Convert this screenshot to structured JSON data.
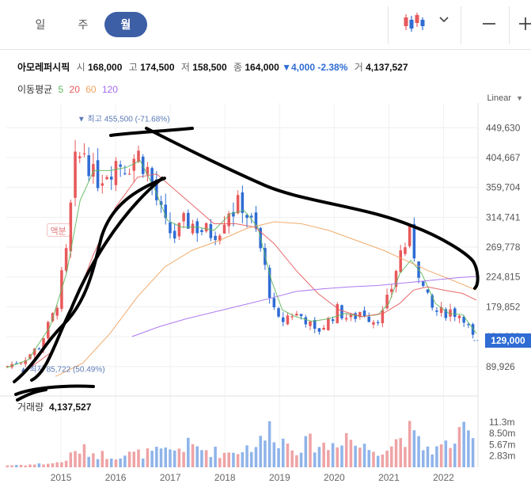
{
  "tabs": [
    {
      "label": "일"
    },
    {
      "label": "주"
    },
    {
      "label": "월"
    }
  ],
  "stock": {
    "name": "아모레퍼시픽",
    "open_label": "시",
    "open": "168,000",
    "high_label": "고",
    "high": "174,500",
    "low_label": "저",
    "low": "158,500",
    "close_label": "종",
    "close": "164,000",
    "change": "4,000",
    "change_pct": "-2.38%",
    "volume_label": "거",
    "volume": "4,137,527"
  },
  "ma": {
    "label": "이동평균",
    "periods": [
      "5",
      "20",
      "60",
      "120"
    ],
    "colors": [
      "#5cb85c",
      "#e8595b",
      "#f0a35e",
      "#a46cf0"
    ]
  },
  "scale_label": "Linear",
  "colors": {
    "up": "#e8595b",
    "down": "#2f6cd4",
    "accent": "#3d5fa6",
    "annot": "#5a7ab8"
  },
  "chart_data": {
    "type": "candlestick",
    "title": "아모레퍼시픽 월봉",
    "y_ticks": [
      449630,
      404667,
      359704,
      314741,
      269778,
      224815,
      179852,
      134889,
      89926
    ],
    "y_tick_labels": [
      "449,630",
      "404,667",
      "359,704",
      "314,741",
      "269,778",
      "224,815",
      "179,852",
      "134,889",
      "89,926"
    ],
    "ylim": [
      67000,
      475000
    ],
    "x_range": [
      2014.0,
      2022.63
    ],
    "x_ticks": [
      2015,
      2016,
      2017,
      2018,
      2019,
      2020,
      2021,
      2022
    ],
    "x_tick_labels": [
      "2015",
      "2016",
      "2017",
      "2018",
      "2019",
      "2020",
      "2021",
      "2022"
    ],
    "current_price": 129000,
    "current_price_label": "129,000",
    "max_label": "최고 455,500 (-71.68%)",
    "max_value": 455500,
    "max_x": 2015.33,
    "min_label": "최저 85,722 (50.49%)",
    "min_value": 85722,
    "min_x": 2014.04,
    "annotation_text": "액분",
    "volume_label": "거래량",
    "volume_value": "4,137,527",
    "volume_ticks": [
      11.3,
      8.5,
      5.67,
      2.83
    ],
    "volume_tick_labels": [
      "11.3m",
      "8.50m",
      "5.67m",
      "2.83m"
    ],
    "volume_max": 13.5,
    "close_anchors": [
      [
        2014.0,
        90000
      ],
      [
        2014.3,
        100000
      ],
      [
        2014.6,
        120000
      ],
      [
        2014.9,
        175000
      ],
      [
        2015.1,
        260000
      ],
      [
        2015.25,
        390000
      ],
      [
        2015.45,
        420000
      ],
      [
        2015.6,
        370000
      ],
      [
        2015.8,
        385000
      ],
      [
        2016.0,
        400000
      ],
      [
        2016.2,
        395000
      ],
      [
        2016.4,
        410000
      ],
      [
        2016.55,
        395000
      ],
      [
        2016.75,
        340000
      ],
      [
        2016.9,
        300000
      ],
      [
        2017.1,
        285000
      ],
      [
        2017.3,
        310000
      ],
      [
        2017.5,
        300000
      ],
      [
        2017.7,
        290000
      ],
      [
        2017.9,
        300000
      ],
      [
        2018.05,
        330000
      ],
      [
        2018.2,
        325000
      ],
      [
        2018.3,
        340000
      ],
      [
        2018.45,
        310000
      ],
      [
        2018.6,
        285000
      ],
      [
        2018.75,
        230000
      ],
      [
        2018.9,
        170000
      ],
      [
        2019.0,
        155000
      ],
      [
        2019.2,
        170000
      ],
      [
        2019.45,
        165000
      ],
      [
        2019.65,
        140000
      ],
      [
        2019.85,
        155000
      ],
      [
        2020.05,
        175000
      ],
      [
        2020.3,
        160000
      ],
      [
        2020.5,
        175000
      ],
      [
        2020.7,
        160000
      ],
      [
        2020.9,
        170000
      ],
      [
        2021.05,
        210000
      ],
      [
        2021.2,
        260000
      ],
      [
        2021.38,
        285000
      ],
      [
        2021.5,
        250000
      ],
      [
        2021.65,
        200000
      ],
      [
        2021.8,
        175000
      ],
      [
        2021.95,
        170000
      ],
      [
        2022.1,
        175000
      ],
      [
        2022.25,
        170000
      ],
      [
        2022.4,
        165000
      ],
      [
        2022.5,
        135000
      ],
      [
        2022.6,
        129000
      ]
    ],
    "ma_lines": [
      {
        "name": "MA5",
        "points": [
          [
            2014.0,
            88000
          ],
          [
            2014.4,
            100000
          ],
          [
            2014.8,
            150000
          ],
          [
            2015.1,
            230000
          ],
          [
            2015.35,
            340000
          ],
          [
            2015.6,
            385000
          ],
          [
            2015.9,
            385000
          ],
          [
            2016.2,
            390000
          ],
          [
            2016.45,
            400000
          ],
          [
            2016.7,
            360000
          ],
          [
            2016.95,
            310000
          ],
          [
            2017.2,
            300000
          ],
          [
            2017.5,
            300000
          ],
          [
            2017.8,
            295000
          ],
          [
            2018.1,
            320000
          ],
          [
            2018.35,
            325000
          ],
          [
            2018.6,
            300000
          ],
          [
            2018.85,
            220000
          ],
          [
            2019.05,
            175000
          ],
          [
            2019.3,
            165000
          ],
          [
            2019.6,
            158000
          ],
          [
            2019.9,
            162000
          ],
          [
            2020.2,
            170000
          ],
          [
            2020.5,
            165000
          ],
          [
            2020.8,
            168000
          ],
          [
            2021.0,
            185000
          ],
          [
            2021.2,
            230000
          ],
          [
            2021.4,
            250000
          ],
          [
            2021.6,
            230000
          ],
          [
            2021.85,
            185000
          ],
          [
            2022.1,
            170000
          ],
          [
            2022.35,
            168000
          ],
          [
            2022.6,
            140000
          ]
        ]
      },
      {
        "name": "MA20",
        "points": [
          [
            2014.3,
            80000
          ],
          [
            2014.8,
            110000
          ],
          [
            2015.2,
            175000
          ],
          [
            2015.6,
            260000
          ],
          [
            2016.0,
            330000
          ],
          [
            2016.4,
            375000
          ],
          [
            2016.75,
            380000
          ],
          [
            2017.1,
            355000
          ],
          [
            2017.45,
            330000
          ],
          [
            2017.8,
            305000
          ],
          [
            2018.2,
            305000
          ],
          [
            2018.55,
            300000
          ],
          [
            2018.9,
            275000
          ],
          [
            2019.3,
            235000
          ],
          [
            2019.7,
            200000
          ],
          [
            2020.1,
            175000
          ],
          [
            2020.5,
            165000
          ],
          [
            2020.9,
            170000
          ],
          [
            2021.2,
            185000
          ],
          [
            2021.45,
            205000
          ],
          [
            2021.7,
            210000
          ],
          [
            2022.0,
            205000
          ],
          [
            2022.35,
            200000
          ],
          [
            2022.6,
            190000
          ]
        ]
      },
      {
        "name": "MA60",
        "points": [
          [
            2014.9,
            75000
          ],
          [
            2015.4,
            95000
          ],
          [
            2015.9,
            140000
          ],
          [
            2016.4,
            195000
          ],
          [
            2016.9,
            240000
          ],
          [
            2017.4,
            265000
          ],
          [
            2017.9,
            280000
          ],
          [
            2018.4,
            298000
          ],
          [
            2018.9,
            308000
          ],
          [
            2019.4,
            305000
          ],
          [
            2019.9,
            295000
          ],
          [
            2020.4,
            280000
          ],
          [
            2020.9,
            265000
          ],
          [
            2021.3,
            250000
          ],
          [
            2021.7,
            235000
          ],
          [
            2022.1,
            222000
          ],
          [
            2022.6,
            205000
          ]
        ]
      },
      {
        "name": "MA120",
        "points": [
          [
            2016.3,
            135000
          ],
          [
            2016.8,
            150000
          ],
          [
            2017.3,
            162000
          ],
          [
            2017.8,
            172000
          ],
          [
            2018.3,
            182000
          ],
          [
            2018.8,
            192000
          ],
          [
            2019.3,
            203000
          ],
          [
            2019.8,
            207000
          ],
          [
            2020.3,
            210000
          ],
          [
            2020.8,
            212000
          ],
          [
            2021.3,
            216000
          ],
          [
            2021.8,
            220000
          ],
          [
            2022.3,
            224000
          ],
          [
            2022.6,
            225500
          ]
        ]
      }
    ],
    "volume_anchors": [
      [
        2014.0,
        0.5
      ],
      [
        2014.5,
        0.7
      ],
      [
        2015.0,
        1.2
      ],
      [
        2015.35,
        4.5
      ],
      [
        2015.7,
        3.2
      ],
      [
        2016.0,
        3.0
      ],
      [
        2016.5,
        3.5
      ],
      [
        2017.0,
        4.0
      ],
      [
        2017.3,
        5.5
      ],
      [
        2017.7,
        4.2
      ],
      [
        2018.0,
        3.5
      ],
      [
        2018.3,
        4.5
      ],
      [
        2018.7,
        6.5
      ],
      [
        2018.85,
        10.5
      ],
      [
        2019.0,
        7.0
      ],
      [
        2019.3,
        5.0
      ],
      [
        2019.6,
        6.2
      ],
      [
        2019.9,
        5.0
      ],
      [
        2020.1,
        7.5
      ],
      [
        2020.2,
        8.8
      ],
      [
        2020.4,
        5.5
      ],
      [
        2020.7,
        4.5
      ],
      [
        2021.0,
        5.0
      ],
      [
        2021.2,
        7.5
      ],
      [
        2021.35,
        9.0
      ],
      [
        2021.6,
        5.2
      ],
      [
        2021.9,
        4.5
      ],
      [
        2022.1,
        6.0
      ],
      [
        2022.3,
        7.5
      ],
      [
        2022.45,
        9.0
      ],
      [
        2022.6,
        4.0
      ]
    ]
  }
}
